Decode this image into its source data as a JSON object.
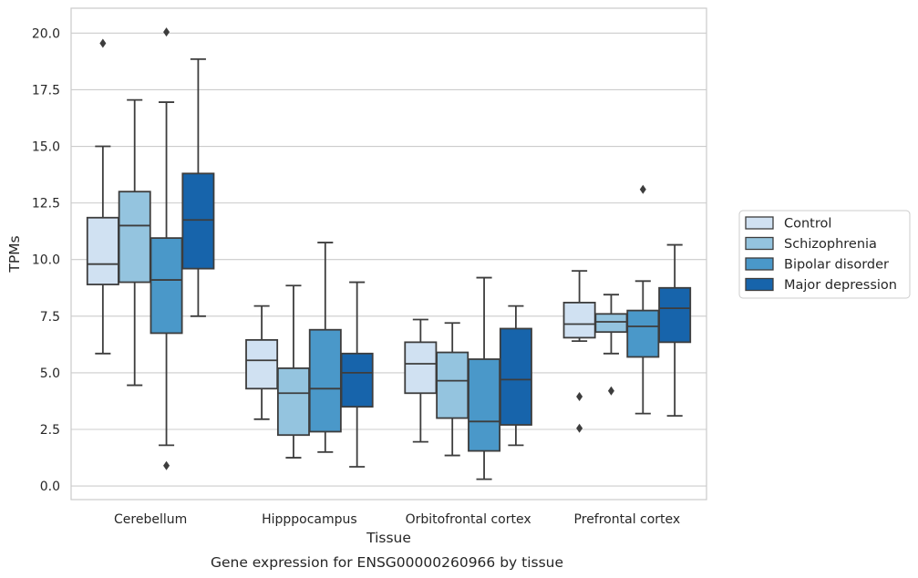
{
  "chart_data": {
    "type": "box",
    "title": "",
    "caption": "Gene expression for ENSG00000260966 by tissue",
    "xlabel": "Tissue",
    "ylabel": "TPMs",
    "ylim": [
      -0.6,
      21.1
    ],
    "yticks": [
      "0.0",
      "2.5",
      "5.0",
      "7.5",
      "10.0",
      "12.5",
      "15.0",
      "17.5",
      "20.0"
    ],
    "ytick_values": [
      0,
      2.5,
      5,
      7.5,
      10,
      12.5,
      15,
      17.5,
      20
    ],
    "grid": "horizontal",
    "legend_position": "right",
    "categories": [
      "Cerebellum",
      "Hipppocampus",
      "Orbitofrontal cortex",
      "Prefrontal cortex"
    ],
    "series": [
      {
        "name": "Control",
        "color": "#d0e1f2",
        "boxes": [
          {
            "whisker_low": 5.85,
            "q1": 8.9,
            "median": 9.8,
            "q3": 11.85,
            "whisker_high": 15.0,
            "outliers": [
              19.55
            ]
          },
          {
            "whisker_low": 2.95,
            "q1": 4.3,
            "median": 5.55,
            "q3": 6.45,
            "whisker_high": 7.95,
            "outliers": []
          },
          {
            "whisker_low": 1.95,
            "q1": 4.1,
            "median": 5.4,
            "q3": 6.35,
            "whisker_high": 7.35,
            "outliers": []
          },
          {
            "whisker_low": 6.4,
            "q1": 6.55,
            "median": 7.15,
            "q3": 8.1,
            "whisker_high": 9.5,
            "outliers": [
              3.95,
              2.55
            ]
          }
        ]
      },
      {
        "name": "Schizophrenia",
        "color": "#94c4df",
        "boxes": [
          {
            "whisker_low": 4.45,
            "q1": 9.0,
            "median": 11.5,
            "q3": 13.0,
            "whisker_high": 17.05,
            "outliers": []
          },
          {
            "whisker_low": 1.25,
            "q1": 2.25,
            "median": 4.1,
            "q3": 5.2,
            "whisker_high": 8.85,
            "outliers": []
          },
          {
            "whisker_low": 1.35,
            "q1": 3.0,
            "median": 4.65,
            "q3": 5.9,
            "whisker_high": 7.2,
            "outliers": []
          },
          {
            "whisker_low": 5.85,
            "q1": 6.8,
            "median": 7.25,
            "q3": 7.6,
            "whisker_high": 8.45,
            "outliers": [
              4.2
            ]
          }
        ]
      },
      {
        "name": "Bipolar disorder",
        "color": "#4a98c9",
        "boxes": [
          {
            "whisker_low": 1.8,
            "q1": 6.75,
            "median": 9.1,
            "q3": 10.95,
            "whisker_high": 16.95,
            "outliers": [
              20.05,
              0.9
            ]
          },
          {
            "whisker_low": 1.5,
            "q1": 2.4,
            "median": 4.3,
            "q3": 6.9,
            "whisker_high": 10.75,
            "outliers": []
          },
          {
            "whisker_low": 0.3,
            "q1": 1.55,
            "median": 2.85,
            "q3": 5.6,
            "whisker_high": 9.2,
            "outliers": []
          },
          {
            "whisker_low": 3.2,
            "q1": 5.7,
            "median": 7.05,
            "q3": 7.75,
            "whisker_high": 9.05,
            "outliers": [
              13.1
            ]
          }
        ]
      },
      {
        "name": "Major depression",
        "color": "#1764ab",
        "boxes": [
          {
            "whisker_low": 7.5,
            "q1": 9.6,
            "median": 11.75,
            "q3": 13.8,
            "whisker_high": 18.85,
            "outliers": []
          },
          {
            "whisker_low": 0.85,
            "q1": 3.5,
            "median": 5.0,
            "q3": 5.85,
            "whisker_high": 9.0,
            "outliers": []
          },
          {
            "whisker_low": 1.8,
            "q1": 2.7,
            "median": 4.7,
            "q3": 6.95,
            "whisker_high": 7.95,
            "outliers": []
          },
          {
            "whisker_low": 3.1,
            "q1": 6.35,
            "median": 7.85,
            "q3": 8.75,
            "whisker_high": 10.65,
            "outliers": []
          }
        ]
      }
    ]
  }
}
